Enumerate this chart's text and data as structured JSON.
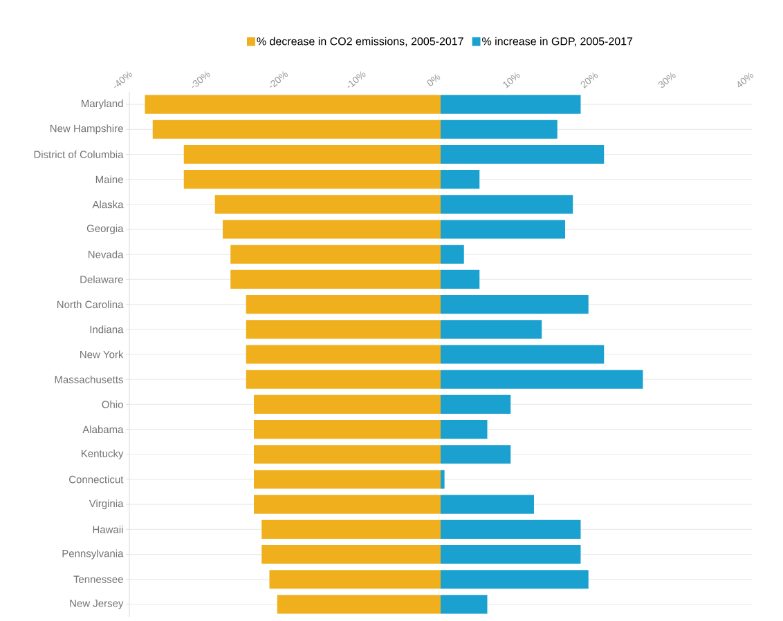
{
  "chart_data": {
    "type": "bar",
    "orientation": "horizontal",
    "categories": [
      "Maryland",
      "New Hampshire",
      "District of Columbia",
      "Maine",
      "Alaska",
      "Georgia",
      "Nevada",
      "Delaware",
      "North Carolina",
      "Indiana",
      "New York",
      "Massachusetts",
      "Ohio",
      "Alabama",
      "Kentucky",
      "Connecticut",
      "Virginia",
      "Hawaii",
      "Pennsylvania",
      "Tennessee",
      "New Jersey"
    ],
    "series": [
      {
        "name": "% decrease in CO2 emissions, 2005-2017",
        "color": "#f0b01e",
        "values": [
          -38,
          -37,
          -33,
          -33,
          -29,
          -28,
          -27,
          -27,
          -25,
          -25,
          -25,
          -25,
          -24,
          -24,
          -24,
          -24,
          -24,
          -23,
          -23,
          -22,
          -21
        ]
      },
      {
        "name": "% increase in GDP, 2005-2017",
        "color": "#1ba1d0",
        "values": [
          18,
          15,
          21,
          5,
          17,
          16,
          3,
          5,
          19,
          13,
          21,
          26,
          9,
          6,
          9,
          0.5,
          12,
          18,
          18,
          19,
          6
        ]
      }
    ],
    "xlim": [
      -40,
      40
    ],
    "xticks": [
      {
        "value": -40,
        "label": "-40%"
      },
      {
        "value": -30,
        "label": "-30%"
      },
      {
        "value": -20,
        "label": "-20%"
      },
      {
        "value": -10,
        "label": "-10%"
      },
      {
        "value": 0,
        "label": "0%"
      },
      {
        "value": 10,
        "label": "10%"
      },
      {
        "value": 20,
        "label": "20%"
      },
      {
        "value": 30,
        "label": "30%"
      },
      {
        "value": 40,
        "label": "40%"
      }
    ],
    "grid": "y",
    "legend": "top",
    "stacked": true
  }
}
